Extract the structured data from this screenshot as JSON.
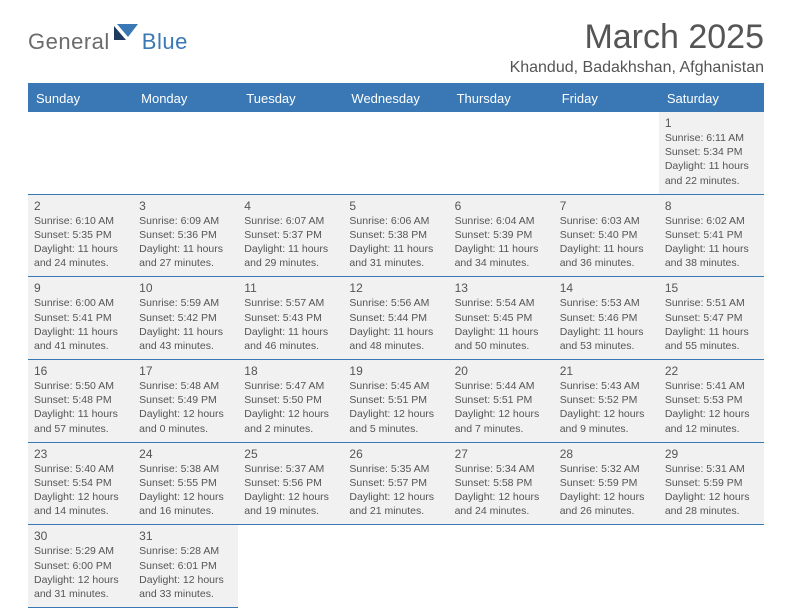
{
  "logo": {
    "part1": "General",
    "part2": "Blue"
  },
  "title": "March 2025",
  "location": "Khandud, Badakhshan, Afghanistan",
  "colors": {
    "accent": "#3a78b5",
    "cell_bg": "#f1f1f1",
    "text": "#555555",
    "page_bg": "#ffffff"
  },
  "weekdays": [
    "Sunday",
    "Monday",
    "Tuesday",
    "Wednesday",
    "Thursday",
    "Friday",
    "Saturday"
  ],
  "lead_blanks": 6,
  "trail_blanks": 5,
  "days": [
    {
      "n": "1",
      "sr": "Sunrise: 6:11 AM",
      "ss": "Sunset: 5:34 PM",
      "d1": "Daylight: 11 hours",
      "d2": "and 22 minutes."
    },
    {
      "n": "2",
      "sr": "Sunrise: 6:10 AM",
      "ss": "Sunset: 5:35 PM",
      "d1": "Daylight: 11 hours",
      "d2": "and 24 minutes."
    },
    {
      "n": "3",
      "sr": "Sunrise: 6:09 AM",
      "ss": "Sunset: 5:36 PM",
      "d1": "Daylight: 11 hours",
      "d2": "and 27 minutes."
    },
    {
      "n": "4",
      "sr": "Sunrise: 6:07 AM",
      "ss": "Sunset: 5:37 PM",
      "d1": "Daylight: 11 hours",
      "d2": "and 29 minutes."
    },
    {
      "n": "5",
      "sr": "Sunrise: 6:06 AM",
      "ss": "Sunset: 5:38 PM",
      "d1": "Daylight: 11 hours",
      "d2": "and 31 minutes."
    },
    {
      "n": "6",
      "sr": "Sunrise: 6:04 AM",
      "ss": "Sunset: 5:39 PM",
      "d1": "Daylight: 11 hours",
      "d2": "and 34 minutes."
    },
    {
      "n": "7",
      "sr": "Sunrise: 6:03 AM",
      "ss": "Sunset: 5:40 PM",
      "d1": "Daylight: 11 hours",
      "d2": "and 36 minutes."
    },
    {
      "n": "8",
      "sr": "Sunrise: 6:02 AM",
      "ss": "Sunset: 5:41 PM",
      "d1": "Daylight: 11 hours",
      "d2": "and 38 minutes."
    },
    {
      "n": "9",
      "sr": "Sunrise: 6:00 AM",
      "ss": "Sunset: 5:41 PM",
      "d1": "Daylight: 11 hours",
      "d2": "and 41 minutes."
    },
    {
      "n": "10",
      "sr": "Sunrise: 5:59 AM",
      "ss": "Sunset: 5:42 PM",
      "d1": "Daylight: 11 hours",
      "d2": "and 43 minutes."
    },
    {
      "n": "11",
      "sr": "Sunrise: 5:57 AM",
      "ss": "Sunset: 5:43 PM",
      "d1": "Daylight: 11 hours",
      "d2": "and 46 minutes."
    },
    {
      "n": "12",
      "sr": "Sunrise: 5:56 AM",
      "ss": "Sunset: 5:44 PM",
      "d1": "Daylight: 11 hours",
      "d2": "and 48 minutes."
    },
    {
      "n": "13",
      "sr": "Sunrise: 5:54 AM",
      "ss": "Sunset: 5:45 PM",
      "d1": "Daylight: 11 hours",
      "d2": "and 50 minutes."
    },
    {
      "n": "14",
      "sr": "Sunrise: 5:53 AM",
      "ss": "Sunset: 5:46 PM",
      "d1": "Daylight: 11 hours",
      "d2": "and 53 minutes."
    },
    {
      "n": "15",
      "sr": "Sunrise: 5:51 AM",
      "ss": "Sunset: 5:47 PM",
      "d1": "Daylight: 11 hours",
      "d2": "and 55 minutes."
    },
    {
      "n": "16",
      "sr": "Sunrise: 5:50 AM",
      "ss": "Sunset: 5:48 PM",
      "d1": "Daylight: 11 hours",
      "d2": "and 57 minutes."
    },
    {
      "n": "17",
      "sr": "Sunrise: 5:48 AM",
      "ss": "Sunset: 5:49 PM",
      "d1": "Daylight: 12 hours",
      "d2": "and 0 minutes."
    },
    {
      "n": "18",
      "sr": "Sunrise: 5:47 AM",
      "ss": "Sunset: 5:50 PM",
      "d1": "Daylight: 12 hours",
      "d2": "and 2 minutes."
    },
    {
      "n": "19",
      "sr": "Sunrise: 5:45 AM",
      "ss": "Sunset: 5:51 PM",
      "d1": "Daylight: 12 hours",
      "d2": "and 5 minutes."
    },
    {
      "n": "20",
      "sr": "Sunrise: 5:44 AM",
      "ss": "Sunset: 5:51 PM",
      "d1": "Daylight: 12 hours",
      "d2": "and 7 minutes."
    },
    {
      "n": "21",
      "sr": "Sunrise: 5:43 AM",
      "ss": "Sunset: 5:52 PM",
      "d1": "Daylight: 12 hours",
      "d2": "and 9 minutes."
    },
    {
      "n": "22",
      "sr": "Sunrise: 5:41 AM",
      "ss": "Sunset: 5:53 PM",
      "d1": "Daylight: 12 hours",
      "d2": "and 12 minutes."
    },
    {
      "n": "23",
      "sr": "Sunrise: 5:40 AM",
      "ss": "Sunset: 5:54 PM",
      "d1": "Daylight: 12 hours",
      "d2": "and 14 minutes."
    },
    {
      "n": "24",
      "sr": "Sunrise: 5:38 AM",
      "ss": "Sunset: 5:55 PM",
      "d1": "Daylight: 12 hours",
      "d2": "and 16 minutes."
    },
    {
      "n": "25",
      "sr": "Sunrise: 5:37 AM",
      "ss": "Sunset: 5:56 PM",
      "d1": "Daylight: 12 hours",
      "d2": "and 19 minutes."
    },
    {
      "n": "26",
      "sr": "Sunrise: 5:35 AM",
      "ss": "Sunset: 5:57 PM",
      "d1": "Daylight: 12 hours",
      "d2": "and 21 minutes."
    },
    {
      "n": "27",
      "sr": "Sunrise: 5:34 AM",
      "ss": "Sunset: 5:58 PM",
      "d1": "Daylight: 12 hours",
      "d2": "and 24 minutes."
    },
    {
      "n": "28",
      "sr": "Sunrise: 5:32 AM",
      "ss": "Sunset: 5:59 PM",
      "d1": "Daylight: 12 hours",
      "d2": "and 26 minutes."
    },
    {
      "n": "29",
      "sr": "Sunrise: 5:31 AM",
      "ss": "Sunset: 5:59 PM",
      "d1": "Daylight: 12 hours",
      "d2": "and 28 minutes."
    },
    {
      "n": "30",
      "sr": "Sunrise: 5:29 AM",
      "ss": "Sunset: 6:00 PM",
      "d1": "Daylight: 12 hours",
      "d2": "and 31 minutes."
    },
    {
      "n": "31",
      "sr": "Sunrise: 5:28 AM",
      "ss": "Sunset: 6:01 PM",
      "d1": "Daylight: 12 hours",
      "d2": "and 33 minutes."
    }
  ]
}
